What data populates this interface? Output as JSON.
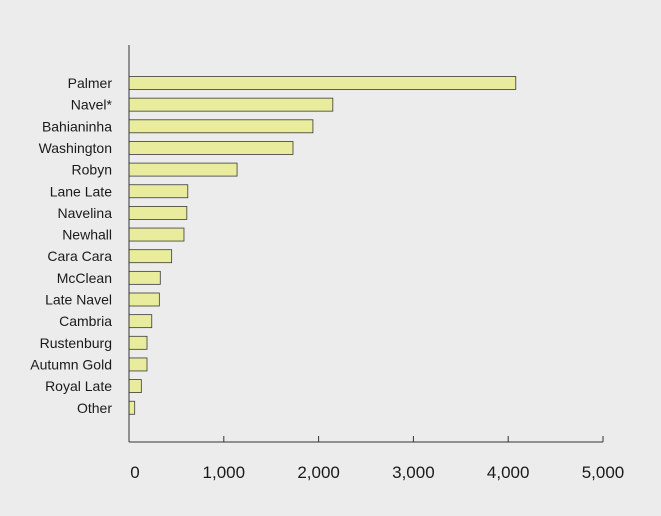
{
  "chart_data": {
    "type": "bar",
    "orientation": "horizontal",
    "title": "",
    "xlabel": "",
    "ylabel": "",
    "categories": [
      "Palmer",
      "Navel*",
      "Bahianinha",
      "Washington",
      "Robyn",
      "Lane Late",
      "Navelina",
      "Newhall",
      "Cara Cara",
      "McClean",
      "Late Navel",
      "Cambria",
      "Rustenburg",
      "Autumn Gold",
      "Royal Late",
      "Other"
    ],
    "values": [
      4080,
      2150,
      1940,
      1730,
      1140,
      620,
      610,
      580,
      450,
      330,
      320,
      240,
      190,
      190,
      130,
      60
    ],
    "xlim": [
      0,
      5000
    ],
    "xticks": [
      0,
      1000,
      2000,
      3000,
      4000,
      5000
    ],
    "xtick_labels": [
      "0",
      "1,000",
      "2,000",
      "3,000",
      "4,000",
      "5,000"
    ],
    "bar_color": "#e8ec9c",
    "grid": false,
    "legend": "none"
  }
}
